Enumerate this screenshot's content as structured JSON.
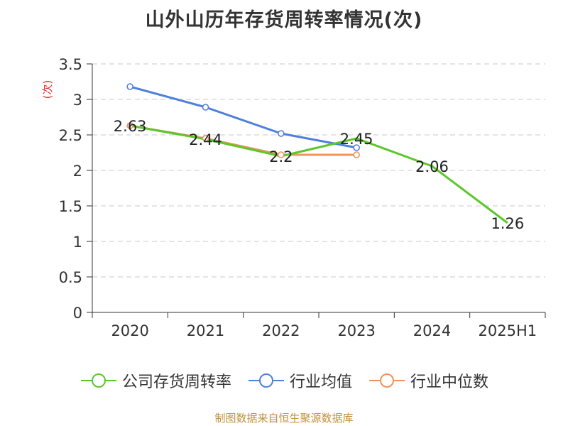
{
  "title": "山外山历年存货周转率情况(次)",
  "source": "制图数据来自恒生聚源数据库",
  "chart_data": {
    "type": "line",
    "title": "山外山历年存货周转率情况(次)",
    "ylabel": "(次)",
    "xlabel": "",
    "categories": [
      "2020",
      "2021",
      "2022",
      "2023",
      "2024",
      "2025H1"
    ],
    "ylim": [
      0,
      3.5
    ],
    "yticks": [
      "0",
      "0.5",
      "1",
      "1.5",
      "2",
      "2.5",
      "3",
      "3.5"
    ],
    "grid": true,
    "legend_position": "bottom",
    "series": [
      {
        "name": "公司存货周转率",
        "color": "#5cc72a",
        "values": [
          2.63,
          2.44,
          2.2,
          2.45,
          2.06,
          1.26
        ],
        "labels": [
          "2.63",
          "2.44",
          "2.2",
          "2.45",
          "2.06",
          "1.26"
        ]
      },
      {
        "name": "行业均值",
        "color": "#4e7fdb",
        "values": [
          3.18,
          2.89,
          2.52,
          2.32,
          null,
          null
        ]
      },
      {
        "name": "行业中位数",
        "color": "#f0915e",
        "values": [
          2.63,
          2.45,
          2.22,
          2.22,
          null,
          null
        ]
      }
    ]
  }
}
